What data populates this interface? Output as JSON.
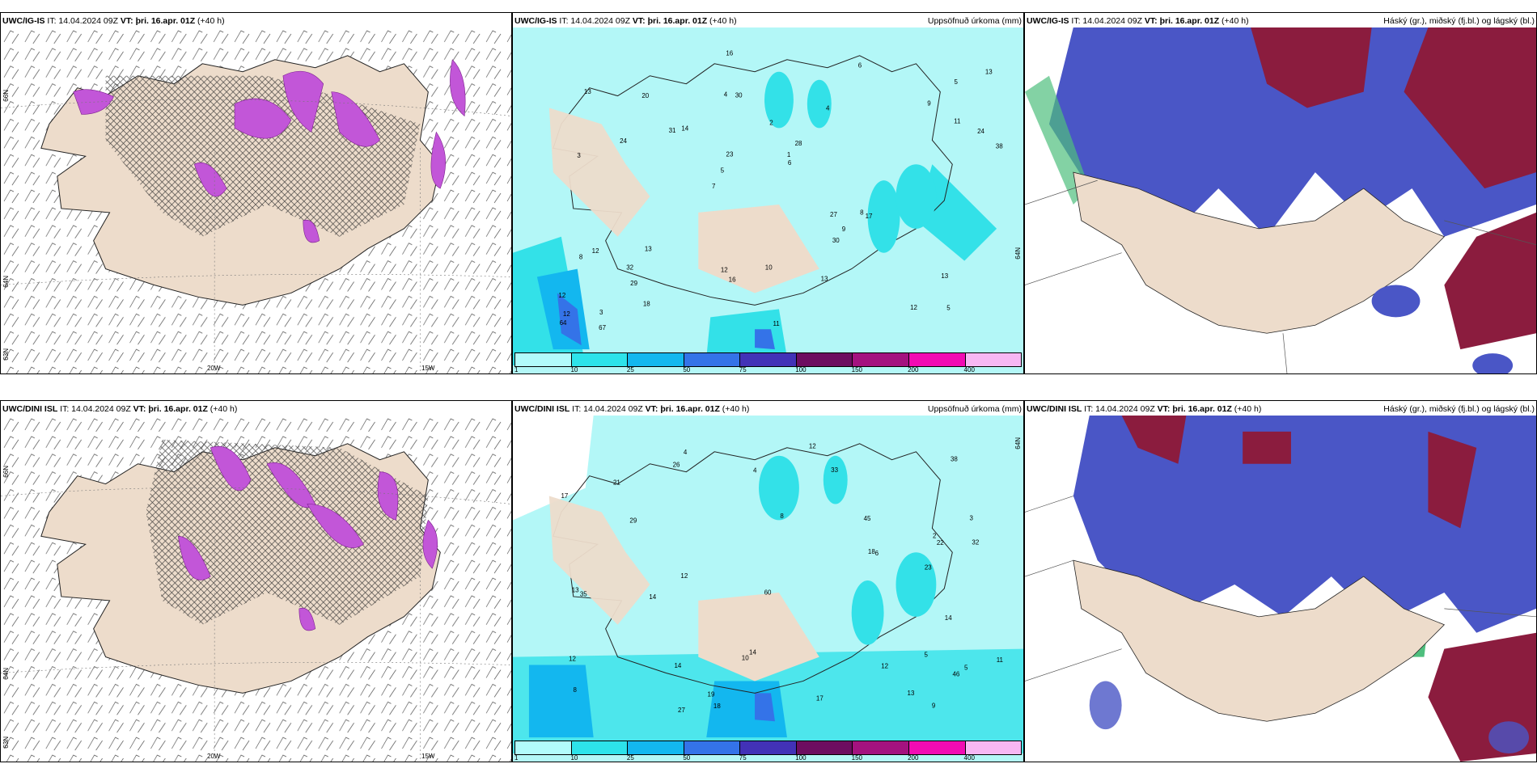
{
  "rows": [
    {
      "wind": {
        "model": "UWC/IG-IS",
        "it": "IT: 14.04.2024 09Z",
        "vt": "VT: þri. 16.apr. 01Z",
        "lead": "(+40 h)",
        "lat_labels": [
          "66N",
          "64N",
          "63N"
        ],
        "lon_labels": [
          "20W",
          "15W"
        ]
      },
      "precip": {
        "model": "UWC/IG-IS",
        "it": "IT: 14.04.2024 09Z",
        "vt": "VT: þri. 16.apr. 01Z",
        "lead": "(+40 h)",
        "field": "Uppsöfnuð úrkoma (mm)",
        "side_label": "64N"
      },
      "cloud": {
        "model": "UWC/IG-IS",
        "it": "IT: 14.04.2024 09Z",
        "vt": "VT: þri. 16.apr. 01Z",
        "lead": "(+40 h)",
        "field": "Háský (gr.), miðský (fj.bl.) og lágský (bl.)"
      }
    },
    {
      "wind": {
        "model": "UWC/DINI ISL",
        "it": "IT: 14.04.2024 09Z",
        "vt": "VT: þri. 16.apr. 01Z",
        "lead": "(+40 h)",
        "lat_labels": [
          "66N",
          "64N",
          "63N"
        ],
        "lon_labels": [
          "20W",
          "15W"
        ]
      },
      "precip": {
        "model": "UWC/DINI ISL",
        "it": "IT: 14.04.2024 09Z",
        "vt": "VT: þri. 16.apr. 01Z",
        "lead": "(+40 h)",
        "field": "Uppsöfnuð úrkoma (mm)",
        "side_label": "64N"
      },
      "cloud": {
        "model": "UWC/DINI ISL",
        "it": "IT: 14.04.2024 09Z",
        "vt": "VT: þri. 16.apr. 01Z",
        "lead": "(+40 h)",
        "field": "Háský (gr.), miðský (fj.bl.) og lágský (bl.)"
      }
    }
  ],
  "legend": {
    "labels": [
      "1",
      "10",
      "25",
      "50",
      "75",
      "100",
      "150",
      "200",
      "400"
    ],
    "colors": [
      "#b2fbfb",
      "#2de3ea",
      "#13b7ef",
      "#3473e8",
      "#4232b7",
      "#6d0d60",
      "#a4127f",
      "#f20bb3",
      "#f7b7f3"
    ]
  },
  "colors": {
    "land": "#eddccb",
    "precip_bg": "#b3f7f7",
    "precip_mid": "#33e1e8",
    "cloud_high": "#8b1c3e",
    "cloud_mid": "#4a56c6",
    "wind_precip": "#c256d8"
  },
  "precip_numbers_top": [
    "5",
    "3",
    "5",
    "7",
    "4",
    "3",
    "4",
    "2",
    "12",
    "14",
    "12",
    "29",
    "30",
    "28",
    "17",
    "13",
    "16",
    "38",
    "27",
    "11",
    "5",
    "12",
    "23",
    "20",
    "6",
    "13",
    "12",
    "13",
    "8",
    "11",
    "31",
    "24",
    "30",
    "18",
    "24",
    "1",
    "12",
    "16",
    "6",
    "8",
    "9",
    "13",
    "9",
    "13",
    "32",
    "67",
    "64",
    "10"
  ],
  "precip_numbers_bottom": [
    "5",
    "3",
    "5",
    "8",
    "8",
    "4",
    "2",
    "14",
    "38",
    "29",
    "32",
    "17",
    "23",
    "18",
    "12",
    "21",
    "46",
    "26",
    "14",
    "22",
    "13",
    "35",
    "17",
    "18",
    "19",
    "10",
    "12",
    "33",
    "45",
    "11",
    "14",
    "12",
    "27",
    "60",
    "14",
    "13",
    "6",
    "4",
    "9",
    "12"
  ]
}
